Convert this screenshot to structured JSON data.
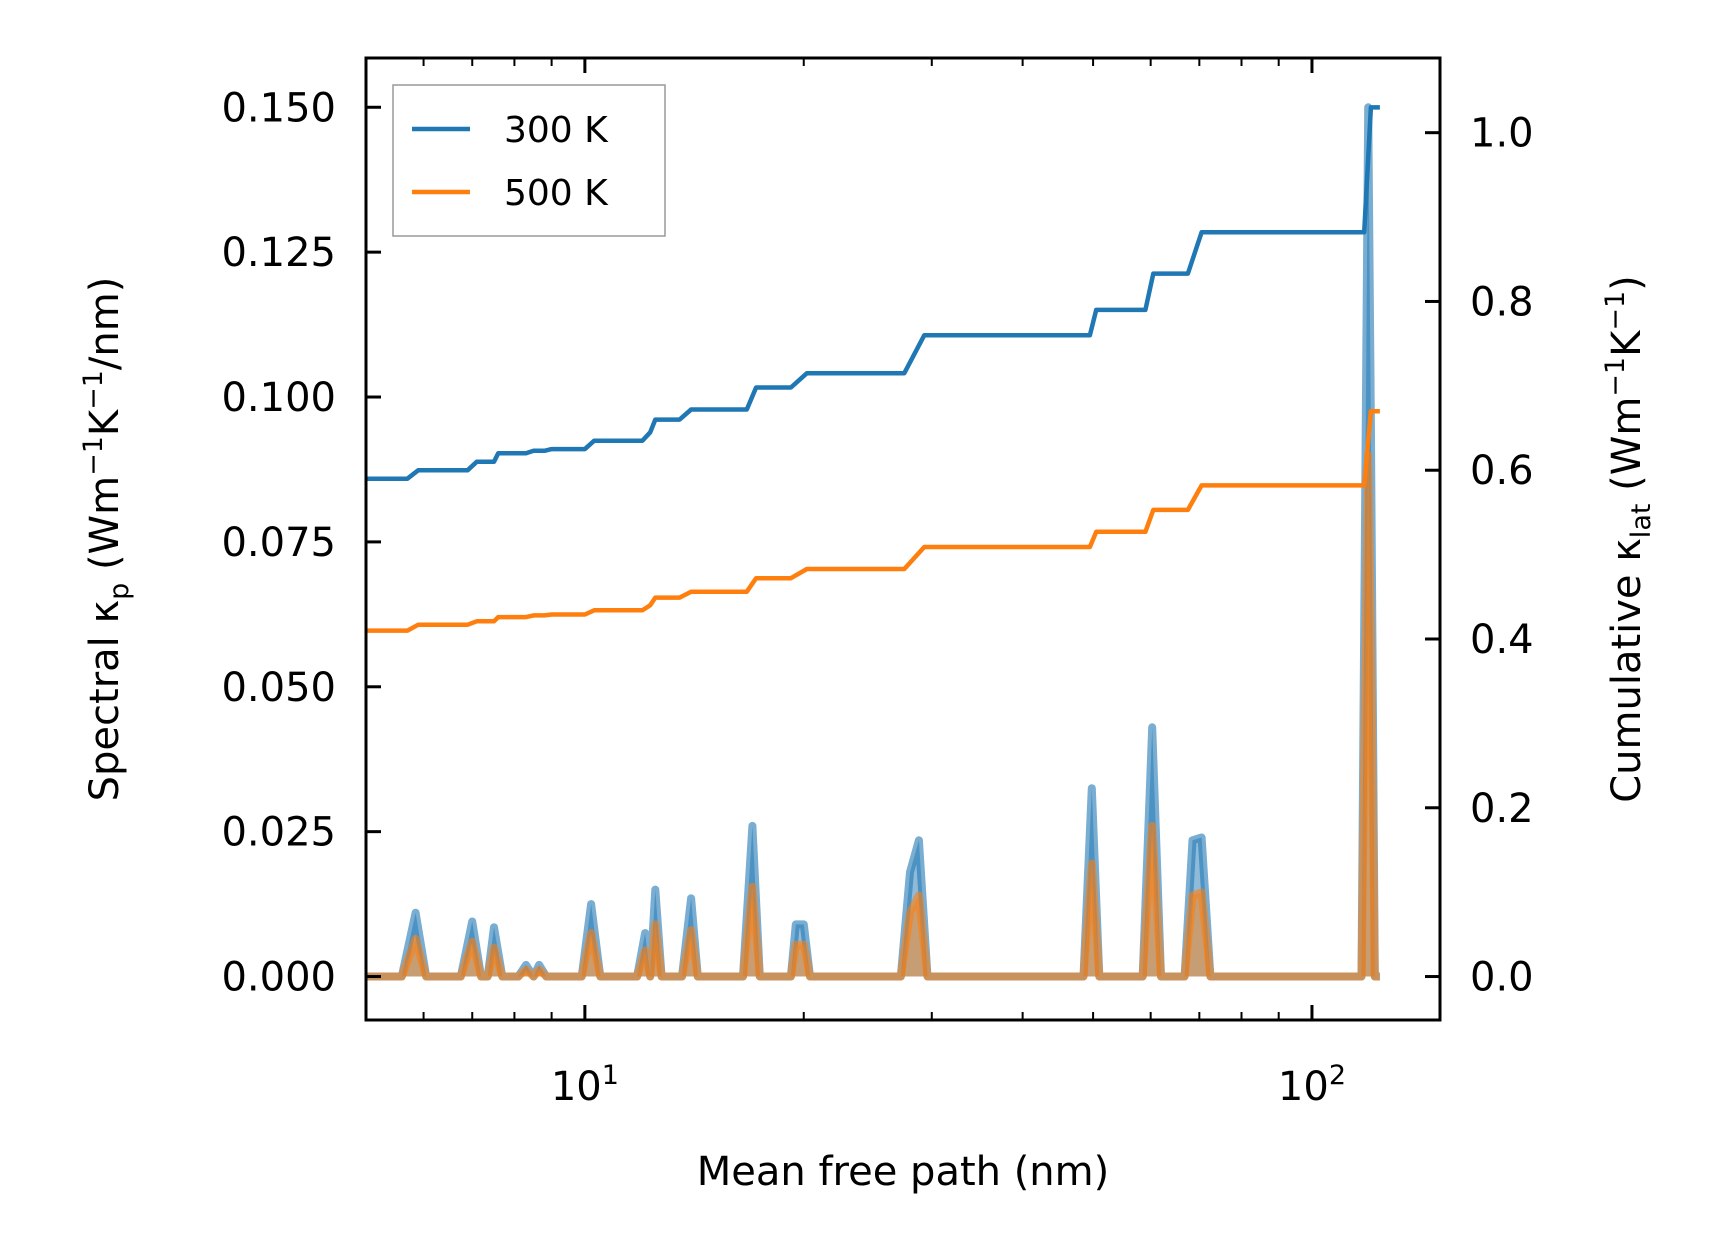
{
  "chart_data": {
    "type": "line",
    "xscale": "log",
    "xlim": [
      5.0,
      150.0
    ],
    "xlabel": "Mean free path (nm)",
    "x_ticks": [
      {
        "value": 10,
        "base": "10",
        "exp": "1"
      },
      {
        "value": 100,
        "base": "10",
        "exp": "2"
      }
    ],
    "y_left": {
      "label_parts": [
        "Spectral κ",
        "p",
        " (Wm",
        "−1",
        "K",
        "−1",
        "/nm)"
      ],
      "lim": [
        -0.0075,
        0.1585
      ],
      "ticks": [
        0.0,
        0.025,
        0.05,
        0.075,
        0.1,
        0.125,
        0.15
      ],
      "tick_labels": [
        "0.000",
        "0.025",
        "0.050",
        "0.075",
        "0.100",
        "0.125",
        "0.150"
      ]
    },
    "y_right": {
      "label_parts": [
        "Cumulative κ",
        "lat",
        " (Wm",
        "−1",
        "K",
        "−1",
        ")"
      ],
      "lim": [
        -0.0515,
        1.0885
      ],
      "ticks": [
        0.0,
        0.2,
        0.4,
        0.6,
        0.8,
        1.0
      ],
      "tick_labels": [
        "0.0",
        "0.2",
        "0.4",
        "0.6",
        "0.8",
        "1.0"
      ]
    },
    "legend": {
      "placement": "upper-left",
      "entries": [
        {
          "label": "300 K",
          "color": "#1f77b4"
        },
        {
          "label": "500 K",
          "color": "#ff7f0e"
        }
      ]
    },
    "series": [
      {
        "name": "300 K",
        "color": "#1f77b4",
        "cumulative": [
          [
            5.0,
            0.59
          ],
          [
            5.7,
            0.59
          ],
          [
            5.9,
            0.6
          ],
          [
            6.9,
            0.6
          ],
          [
            7.1,
            0.61
          ],
          [
            7.5,
            0.61
          ],
          [
            7.6,
            0.62
          ],
          [
            8.3,
            0.62
          ],
          [
            8.5,
            0.623
          ],
          [
            8.8,
            0.623
          ],
          [
            9.0,
            0.625
          ],
          [
            10.0,
            0.625
          ],
          [
            10.3,
            0.635
          ],
          [
            12.0,
            0.635
          ],
          [
            12.3,
            0.645
          ],
          [
            12.5,
            0.66
          ],
          [
            13.5,
            0.66
          ],
          [
            14.0,
            0.672
          ],
          [
            16.7,
            0.672
          ],
          [
            17.2,
            0.698
          ],
          [
            19.2,
            0.698
          ],
          [
            20.2,
            0.715
          ],
          [
            27.5,
            0.715
          ],
          [
            29.3,
            0.76
          ],
          [
            49.5,
            0.76
          ],
          [
            50.5,
            0.79
          ],
          [
            59.0,
            0.79
          ],
          [
            60.5,
            0.833
          ],
          [
            67.5,
            0.833
          ],
          [
            70.5,
            0.882
          ],
          [
            118.0,
            0.882
          ],
          [
            120.5,
            1.03
          ],
          [
            124.0,
            1.03
          ]
        ],
        "spectral": [
          [
            5.0,
            0.0
          ],
          [
            5.6,
            0.0
          ],
          [
            5.85,
            0.011
          ],
          [
            6.05,
            0.0
          ],
          [
            6.75,
            0.0
          ],
          [
            7.0,
            0.0095
          ],
          [
            7.2,
            0.0
          ],
          [
            7.35,
            0.0
          ],
          [
            7.5,
            0.0085
          ],
          [
            7.7,
            0.0
          ],
          [
            8.1,
            0.0
          ],
          [
            8.3,
            0.002
          ],
          [
            8.5,
            0.0
          ],
          [
            8.65,
            0.002
          ],
          [
            8.85,
            0.0
          ],
          [
            9.9,
            0.0
          ],
          [
            10.2,
            0.0125
          ],
          [
            10.5,
            0.0
          ],
          [
            11.8,
            0.0
          ],
          [
            12.1,
            0.0075
          ],
          [
            12.3,
            0.0
          ],
          [
            12.5,
            0.015
          ],
          [
            12.75,
            0.0
          ],
          [
            13.6,
            0.0
          ],
          [
            14.0,
            0.0135
          ],
          [
            14.3,
            0.0
          ],
          [
            16.5,
            0.0
          ],
          [
            17.0,
            0.026
          ],
          [
            17.4,
            0.0
          ],
          [
            19.2,
            0.0
          ],
          [
            19.5,
            0.009
          ],
          [
            20.0,
            0.009
          ],
          [
            20.4,
            0.0
          ],
          [
            27.2,
            0.0
          ],
          [
            28.0,
            0.018
          ],
          [
            28.8,
            0.0235
          ],
          [
            29.6,
            0.0
          ],
          [
            48.5,
            0.0
          ],
          [
            49.8,
            0.0325
          ],
          [
            51.0,
            0.0
          ],
          [
            58.5,
            0.0
          ],
          [
            60.3,
            0.043
          ],
          [
            62.0,
            0.0
          ],
          [
            66.8,
            0.0
          ],
          [
            68.5,
            0.0235
          ],
          [
            70.5,
            0.024
          ],
          [
            72.5,
            0.0
          ],
          [
            117.0,
            0.0
          ],
          [
            119.5,
            0.15
          ],
          [
            120.5,
            0.095
          ],
          [
            122.0,
            0.0
          ],
          [
            124.0,
            0.0
          ]
        ]
      },
      {
        "name": "500 K",
        "color": "#ff7f0e",
        "cumulative": [
          [
            5.0,
            0.41
          ],
          [
            5.7,
            0.41
          ],
          [
            5.9,
            0.417
          ],
          [
            6.9,
            0.417
          ],
          [
            7.1,
            0.421
          ],
          [
            7.5,
            0.421
          ],
          [
            7.6,
            0.426
          ],
          [
            8.3,
            0.426
          ],
          [
            8.5,
            0.428
          ],
          [
            8.8,
            0.428
          ],
          [
            9.0,
            0.429
          ],
          [
            10.0,
            0.429
          ],
          [
            10.3,
            0.434
          ],
          [
            12.0,
            0.434
          ],
          [
            12.3,
            0.44
          ],
          [
            12.5,
            0.449
          ],
          [
            13.5,
            0.449
          ],
          [
            14.0,
            0.456
          ],
          [
            16.7,
            0.456
          ],
          [
            17.2,
            0.472
          ],
          [
            19.2,
            0.472
          ],
          [
            20.2,
            0.483
          ],
          [
            27.5,
            0.483
          ],
          [
            29.3,
            0.509
          ],
          [
            49.5,
            0.509
          ],
          [
            50.5,
            0.527
          ],
          [
            59.0,
            0.527
          ],
          [
            60.5,
            0.553
          ],
          [
            67.5,
            0.553
          ],
          [
            70.5,
            0.582
          ],
          [
            118.0,
            0.582
          ],
          [
            120.5,
            0.67
          ],
          [
            124.0,
            0.67
          ]
        ],
        "spectral": [
          [
            5.0,
            0.0
          ],
          [
            5.6,
            0.0
          ],
          [
            5.85,
            0.0065
          ],
          [
            6.05,
            0.0
          ],
          [
            6.75,
            0.0
          ],
          [
            7.0,
            0.006
          ],
          [
            7.2,
            0.0
          ],
          [
            7.35,
            0.0
          ],
          [
            7.5,
            0.005
          ],
          [
            7.7,
            0.0
          ],
          [
            8.1,
            0.0
          ],
          [
            8.3,
            0.0012
          ],
          [
            8.5,
            0.0
          ],
          [
            8.65,
            0.0012
          ],
          [
            8.85,
            0.0
          ],
          [
            9.9,
            0.0
          ],
          [
            10.2,
            0.0075
          ],
          [
            10.5,
            0.0
          ],
          [
            11.8,
            0.0
          ],
          [
            12.1,
            0.0045
          ],
          [
            12.3,
            0.0
          ],
          [
            12.5,
            0.009
          ],
          [
            12.75,
            0.0
          ],
          [
            13.6,
            0.0
          ],
          [
            14.0,
            0.008
          ],
          [
            14.3,
            0.0
          ],
          [
            16.5,
            0.0
          ],
          [
            17.0,
            0.0155
          ],
          [
            17.4,
            0.0
          ],
          [
            19.2,
            0.0
          ],
          [
            19.5,
            0.0055
          ],
          [
            20.0,
            0.0055
          ],
          [
            20.4,
            0.0
          ],
          [
            27.2,
            0.0
          ],
          [
            28.0,
            0.011
          ],
          [
            28.8,
            0.014
          ],
          [
            29.6,
            0.0
          ],
          [
            48.5,
            0.0
          ],
          [
            49.8,
            0.0195
          ],
          [
            51.0,
            0.0
          ],
          [
            58.5,
            0.0
          ],
          [
            60.3,
            0.026
          ],
          [
            62.0,
            0.0
          ],
          [
            66.8,
            0.0
          ],
          [
            68.5,
            0.014
          ],
          [
            70.5,
            0.0145
          ],
          [
            72.5,
            0.0
          ],
          [
            117.0,
            0.0
          ],
          [
            119.5,
            0.09
          ],
          [
            120.5,
            0.06
          ],
          [
            122.0,
            0.0
          ],
          [
            124.0,
            0.0
          ]
        ]
      }
    ]
  }
}
